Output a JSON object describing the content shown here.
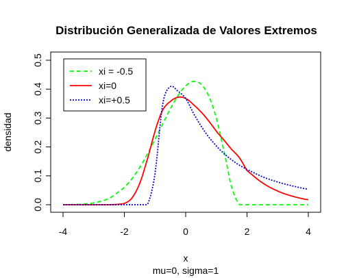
{
  "chart_data": {
    "type": "line",
    "title": "Distribución Generalizada de Valores Extremos",
    "xlabel": "x",
    "subtitle": "mu=0, sigma=1",
    "ylabel": "densidad",
    "xlim": [
      -4,
      4
    ],
    "ylim": [
      0,
      0.5
    ],
    "xticks": [
      -4,
      -2,
      0,
      2,
      4
    ],
    "yticks": [
      0.0,
      0.1,
      0.2,
      0.3,
      0.4,
      0.5
    ],
    "xtick_labels": [
      "-4",
      "-2",
      "0",
      "2",
      "4"
    ],
    "ytick_labels": [
      "0.0",
      "0.1",
      "0.2",
      "0.3",
      "0.4",
      "0.5"
    ],
    "grid": false,
    "legend_position": "top-left",
    "x": [
      -4.0,
      -3.5,
      -3.0,
      -2.5,
      -2.0,
      -1.75,
      -1.5,
      -1.25,
      -1.0,
      -0.75,
      -0.5,
      -0.25,
      0.0,
      0.25,
      0.5,
      0.75,
      1.0,
      1.25,
      1.5,
      1.75,
      2.0,
      2.5,
      3.0,
      3.5,
      4.0
    ],
    "series": [
      {
        "name": "xi = -0.5",
        "color": "#00ff00",
        "dash": "dashed",
        "values": [
          0.0002,
          0.0014,
          0.0064,
          0.0221,
          0.0589,
          0.0899,
          0.1288,
          0.1749,
          0.2261,
          0.2797,
          0.3318,
          0.3775,
          0.4111,
          0.4266,
          0.4174,
          0.3771,
          0.3,
          0.1852,
          0.0613,
          0.0011,
          0.0,
          0.0,
          0.0,
          0.0,
          0.0
        ]
      },
      {
        "name": "xi=0",
        "color": "#ff0000",
        "dash": "solid",
        "values": [
          0.0,
          0.0,
          0.0,
          0.0,
          0.0045,
          0.0235,
          0.0739,
          0.1571,
          0.2546,
          0.3274,
          0.3575,
          0.3721,
          0.3679,
          0.3468,
          0.3212,
          0.2901,
          0.2546,
          0.2234,
          0.1915,
          0.1628,
          0.1182,
          0.076,
          0.0473,
          0.029,
          0.0177
        ]
      },
      {
        "name": "xi=+0.5",
        "color": "#0000cd",
        "dash": "dotted",
        "values": [
          0.0,
          0.0,
          0.0,
          0.0,
          0.0,
          0.0,
          0.0,
          0.0,
          0.108,
          0.348,
          0.4085,
          0.3925,
          0.3679,
          0.3174,
          0.2726,
          0.2348,
          0.2033,
          0.1771,
          0.1553,
          0.1369,
          0.1214,
          0.097,
          0.0787,
          0.0647,
          0.0539
        ]
      }
    ]
  }
}
